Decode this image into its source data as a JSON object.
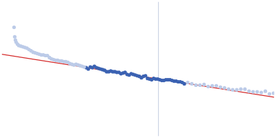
{
  "chart_data": {
    "type": "scatter",
    "tick_labels": false,
    "grid": false,
    "xlim": [
      0,
      400
    ],
    "ylim": [
      0,
      200
    ],
    "series": [
      {
        "type": "scatter",
        "marker": "circle",
        "color": "#bccbe8",
        "x": [
          18,
          19,
          20,
          21,
          23,
          25,
          28,
          31,
          34,
          37,
          40,
          43,
          46,
          49,
          52,
          55,
          58,
          61,
          64,
          67,
          70,
          73,
          76,
          79,
          82,
          85,
          88,
          91,
          94,
          97,
          100,
          103,
          106,
          109,
          112,
          115,
          118,
          121,
          273,
          279,
          285,
          291,
          297,
          303,
          309,
          315,
          321,
          327,
          333,
          339,
          345,
          351,
          357,
          363,
          369,
          375,
          381,
          387,
          393,
          399
        ],
        "values": [
          162,
          148,
          143,
          140,
          137,
          135,
          134,
          133,
          132,
          131,
          129,
          127,
          125,
          124,
          123,
          122,
          121,
          121,
          120,
          120,
          117,
          115,
          114,
          113,
          113,
          112,
          112,
          111,
          111,
          110,
          108,
          107,
          106,
          107,
          106,
          105,
          104,
          103,
          80,
          78,
          76,
          76,
          77,
          74,
          75,
          75,
          73,
          72,
          70,
          69,
          69,
          70,
          70,
          67,
          66,
          66,
          65,
          67,
          63,
          64
        ]
      },
      {
        "type": "scatter",
        "marker": "circle",
        "color": "#3b62b2",
        "x": [
          124,
          127,
          130,
          133,
          136,
          139,
          142,
          145,
          148,
          151,
          154,
          157,
          160,
          163,
          166,
          169,
          172,
          175,
          178,
          181,
          184,
          187,
          190,
          193,
          196,
          199,
          202,
          205,
          208,
          211,
          214,
          217,
          220,
          223,
          226,
          229,
          232,
          235,
          238,
          241,
          244,
          247,
          250,
          253,
          256,
          259,
          262,
          265,
          268
        ],
        "values": [
          102,
          100,
          103,
          102,
          104,
          102,
          101,
          100,
          99,
          98,
          96,
          96,
          97,
          96,
          96,
          95,
          95,
          93,
          94,
          95,
          92,
          91,
          93,
          92,
          91,
          90,
          89,
          87,
          89,
          90,
          86,
          85,
          84,
          86,
          85,
          85,
          84,
          83,
          83,
          84,
          84,
          84,
          83,
          82,
          82,
          81,
          81,
          80,
          78
        ]
      },
      {
        "type": "line",
        "line_style": "solid",
        "color": "#d42a2a",
        "x": [
          0,
          400
        ],
        "values": [
          122,
          58
        ]
      },
      {
        "type": "line",
        "line_style": "solid",
        "color": "#ccd4e4",
        "x": [
          230,
          230
        ],
        "values": [
          0,
          200
        ]
      }
    ]
  }
}
